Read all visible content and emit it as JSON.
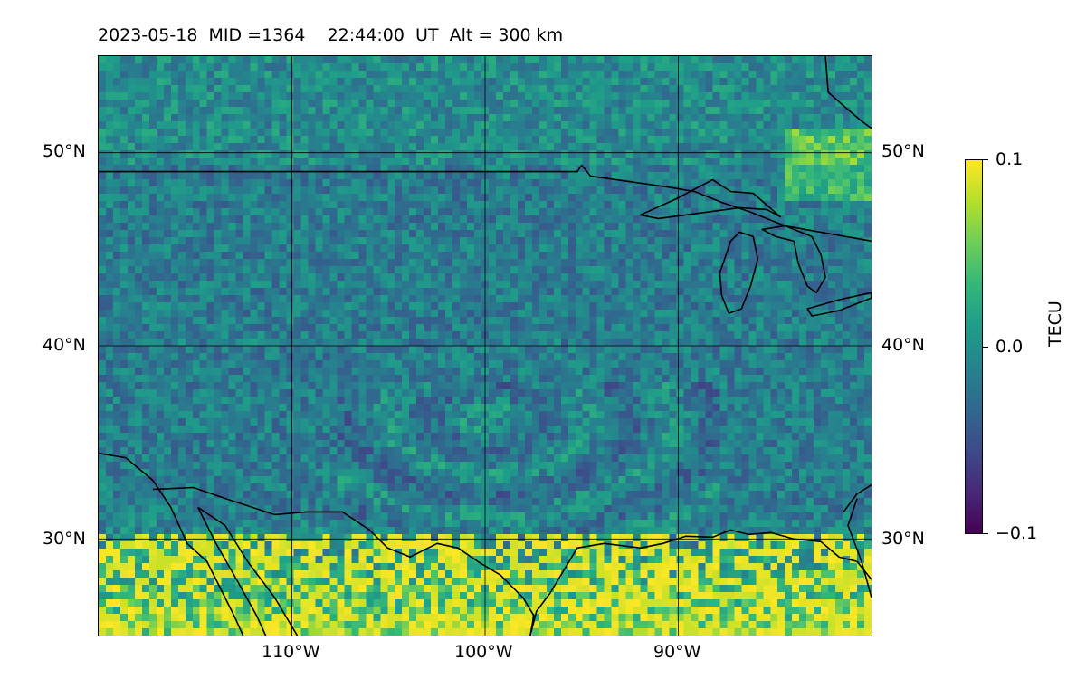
{
  "title": "2023-05-18  MID =1364    22:44:00  UT  Alt = 300 km",
  "map": {
    "projection": "PlateCarree",
    "lon_range": [
      -120,
      -80
    ],
    "lat_range": [
      25,
      55
    ],
    "field": "TEC perturbation",
    "colormap": "viridis",
    "coastlines": true,
    "country_borders": true,
    "gridlines": true
  },
  "lat_ticks": [
    {
      "label": "50°N",
      "value": 50
    },
    {
      "label": "40°N",
      "value": 40
    },
    {
      "label": "30°N",
      "value": 30
    }
  ],
  "lon_ticks": [
    {
      "label": "110°W",
      "value": -110
    },
    {
      "label": "100°W",
      "value": -100
    },
    {
      "label": "90°W",
      "value": -90
    }
  ],
  "colorbar": {
    "label": "TECU",
    "min": -0.1,
    "max": 0.1,
    "ticks": [
      {
        "label": "0.1",
        "value": 0.1
      },
      {
        "label": "0.0",
        "value": 0.0
      },
      {
        "label": "−0.1",
        "value": -0.1
      }
    ]
  }
}
